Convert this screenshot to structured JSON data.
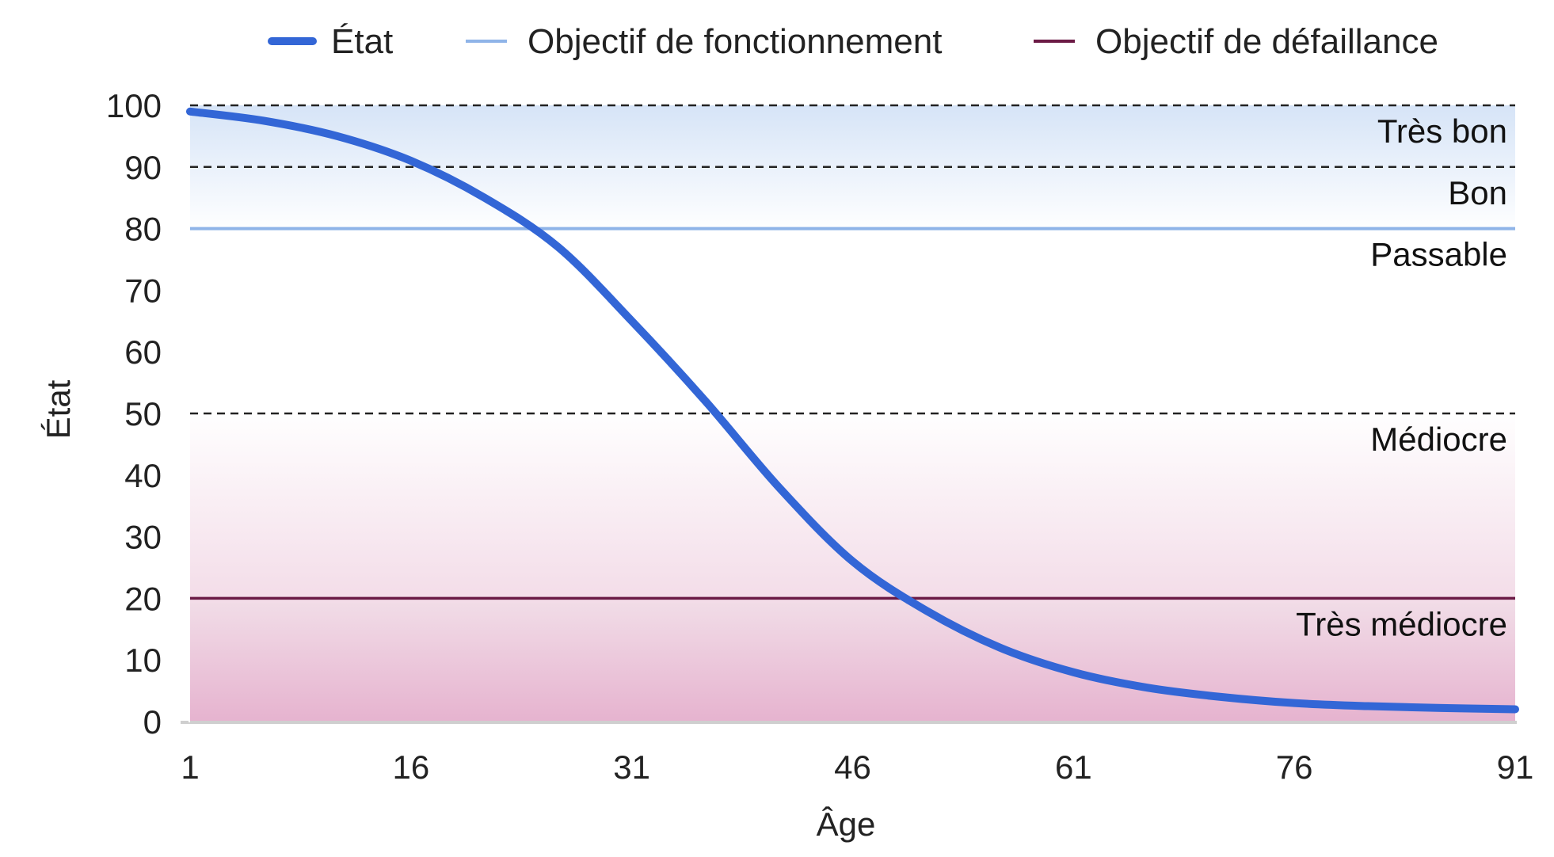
{
  "chart_data": {
    "type": "line",
    "xlabel": "Âge",
    "ylabel": "État",
    "xlim": [
      1,
      91
    ],
    "ylim": [
      0,
      100
    ],
    "x_ticks": [
      1,
      16,
      31,
      46,
      61,
      76,
      91
    ],
    "y_ticks": [
      0,
      10,
      20,
      30,
      40,
      50,
      60,
      70,
      80,
      90,
      100
    ],
    "legend_position": "top",
    "series": [
      {
        "name": "État",
        "color": "#3366d6",
        "x": [
          1,
          6,
          11,
          16,
          21,
          26,
          31,
          36,
          41,
          46,
          51,
          56,
          61,
          66,
          71,
          76,
          81,
          86,
          91
        ],
        "y": [
          99,
          97.5,
          95,
          91,
          85,
          77,
          65,
          52,
          38,
          26,
          18,
          12,
          8,
          5.5,
          4,
          3,
          2.5,
          2.2,
          2
        ]
      }
    ],
    "reference_lines": [
      {
        "name": "Objectif de fonctionnement",
        "y": 80,
        "color": "#8fb4e8"
      },
      {
        "name": "Objectif de défaillance",
        "y": 20,
        "color": "#6b1a45"
      }
    ],
    "condition_bands": [
      {
        "label": "Très bon",
        "from": 90,
        "to": 100
      },
      {
        "label": "Bon",
        "from": 80,
        "to": 90
      },
      {
        "label": "Passable",
        "from": 50,
        "to": 80
      },
      {
        "label": "Médiocre",
        "from": 20,
        "to": 50
      },
      {
        "label": "Très médiocre",
        "from": 0,
        "to": 20
      }
    ],
    "band_boundaries_dashed": [
      100,
      90,
      50
    ]
  }
}
